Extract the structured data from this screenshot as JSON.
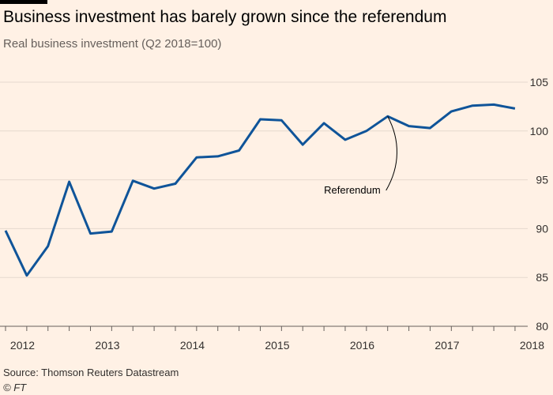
{
  "header": {
    "title": "Business investment has barely grown since the referendum",
    "subtitle": "Real business investment (Q2 2018=100)"
  },
  "footer": {
    "source": "Source: Thomson Reuters Datastream",
    "credit": "© FT"
  },
  "chart_data": {
    "type": "line",
    "title": "Business investment has barely grown since the referendum",
    "subtitle": "Real business investment (Q2 2018=100)",
    "xlabel": "",
    "ylabel": "",
    "x": [
      "2012 Q1",
      "2012 Q2",
      "2012 Q3",
      "2012 Q4",
      "2013 Q1",
      "2013 Q2",
      "2013 Q3",
      "2013 Q4",
      "2014 Q1",
      "2014 Q2",
      "2014 Q3",
      "2014 Q4",
      "2015 Q1",
      "2015 Q2",
      "2015 Q3",
      "2015 Q4",
      "2016 Q1",
      "2016 Q2",
      "2016 Q3",
      "2016 Q4",
      "2017 Q1",
      "2017 Q2",
      "2017 Q3",
      "2017 Q4",
      "2018 Q1"
    ],
    "x_tick_labels": [
      "2012",
      "2013",
      "2014",
      "2015",
      "2016",
      "2017",
      "2018"
    ],
    "series": [
      {
        "name": "",
        "color": "#0f5499",
        "values": [
          89.8,
          85.2,
          88.2,
          94.8,
          89.5,
          89.7,
          94.9,
          94.1,
          94.6,
          97.3,
          97.4,
          98.0,
          101.2,
          101.1,
          98.6,
          100.8,
          99.1,
          100.0,
          101.5,
          100.5,
          100.3,
          102.0,
          102.6,
          102.7,
          102.3
        ]
      }
    ],
    "ylim": [
      80,
      105
    ],
    "y_ticks": [
      80,
      85,
      90,
      95,
      100,
      105
    ],
    "y_axis_side": "right",
    "grid": true,
    "annotations": [
      {
        "text": "Referendum",
        "x": "2016 Q3",
        "y": 101.5
      }
    ],
    "colors": {
      "background": "#fff1e5",
      "line": "#0f5499"
    }
  }
}
